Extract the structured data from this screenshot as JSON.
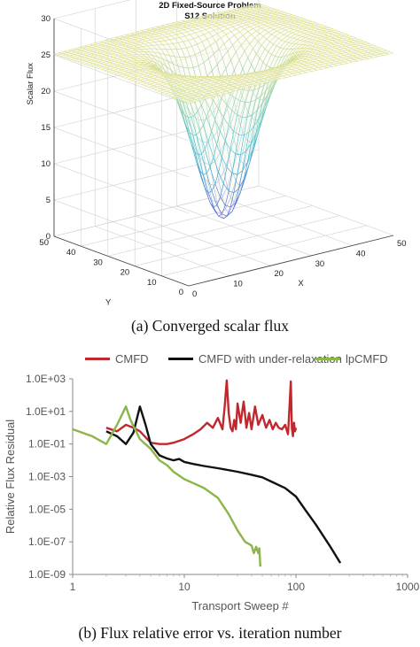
{
  "chart_data": [
    {
      "type": "surface",
      "title": "2D Fixed-Source Problem",
      "subtitle": "S12 Solution",
      "xlabel": "X",
      "ylabel": "Y",
      "zlabel": "Scalar Flux",
      "x_ticks": [
        "0",
        "10",
        "20",
        "30",
        "40",
        "50"
      ],
      "y_ticks": [
        "0",
        "10",
        "20",
        "30",
        "40",
        "50"
      ],
      "z_ticks": [
        "0",
        "5",
        "10",
        "15",
        "20",
        "25",
        "30"
      ],
      "xlim": [
        0,
        50
      ],
      "ylim": [
        0,
        50
      ],
      "zlim": [
        0,
        30
      ],
      "plateau_value": 25,
      "center_minimum_value": 1,
      "center_x": 25,
      "center_y": 25,
      "grid": true,
      "colormap_low": "#5b4fd6",
      "colormap_mid": "#3fbfd0",
      "colormap_high": "#f2e58a"
    },
    {
      "type": "line",
      "xscale": "log",
      "yscale": "log",
      "xlabel": "Transport Sweep #",
      "ylabel": "Relative Flux Residual",
      "xlim": [
        1,
        1000
      ],
      "ylim": [
        1e-09,
        1000
      ],
      "x_ticks": [
        "1",
        "10",
        "100",
        "1000"
      ],
      "y_ticks": [
        "1.0E-09",
        "1.0E-07",
        "1.0E-05",
        "1.0E-03",
        "1.0E-01",
        "1.0E+01",
        "1.0E+03"
      ],
      "legend_position": "top",
      "grid": false,
      "series": [
        {
          "name": "CMFD",
          "color": "#c0282d",
          "x": [
            2,
            2.5,
            3,
            3.5,
            4,
            5,
            6,
            7,
            8,
            10,
            12,
            14,
            16,
            18,
            20,
            22,
            23,
            24,
            25,
            26,
            27,
            28,
            29,
            30,
            32,
            34,
            36,
            38,
            40,
            43,
            46,
            50,
            54,
            58,
            62,
            66,
            70,
            75,
            80,
            85,
            90,
            92,
            94,
            96,
            98,
            100
          ],
          "y": [
            1,
            0.6,
            1.5,
            1.0,
            0.6,
            0.12,
            0.1,
            0.1,
            0.12,
            0.2,
            0.4,
            0.8,
            2,
            1,
            4,
            0.8,
            20,
            800,
            8,
            1,
            0.6,
            3,
            0.8,
            30,
            2,
            40,
            1,
            8,
            0.8,
            20,
            1.5,
            6,
            1,
            3,
            0.8,
            2,
            1,
            0.8,
            1.5,
            0.4,
            700,
            1,
            0.3,
            2,
            0.6,
            1
          ]
        },
        {
          "name": "CMFD with under-relaxation",
          "color": "#111111",
          "x": [
            2,
            2.5,
            3,
            3.5,
            4,
            4.5,
            5,
            6,
            7,
            8,
            9,
            10,
            12,
            15,
            20,
            30,
            40,
            50,
            60,
            80,
            100,
            120,
            150,
            200,
            250
          ],
          "y": [
            0.6,
            0.3,
            0.1,
            0.5,
            20,
            1.5,
            0.1,
            0.02,
            0.013,
            0.01,
            0.012,
            0.008,
            0.006,
            0.0045,
            0.0033,
            0.002,
            0.0013,
            0.0009,
            0.0005,
            0.0002,
            6e-05,
            1e-05,
            1.2e-06,
            6e-08,
            5e-09
          ]
        },
        {
          "name": "lpCMFD",
          "color": "#8ab64a",
          "x": [
            1,
            1.5,
            2,
            2.5,
            3,
            3.3,
            3.7,
            4,
            5,
            6,
            7,
            8,
            10,
            12,
            15,
            20,
            25,
            30,
            35,
            40,
            42,
            44,
            46,
            47,
            48
          ],
          "y": [
            0.8,
            0.3,
            0.1,
            1.5,
            20,
            3,
            0.6,
            0.2,
            0.05,
            0.01,
            0.005,
            0.002,
            0.0007,
            0.0004,
            0.0002,
            5e-05,
            5e-06,
            5e-07,
            1e-07,
            6e-08,
            2e-08,
            5e-08,
            2e-08,
            4e-08,
            3e-09
          ]
        }
      ]
    }
  ],
  "captions": {
    "a": "(a) Converged scalar flux",
    "b": "(b) Flux relative error vs. iteration number"
  }
}
